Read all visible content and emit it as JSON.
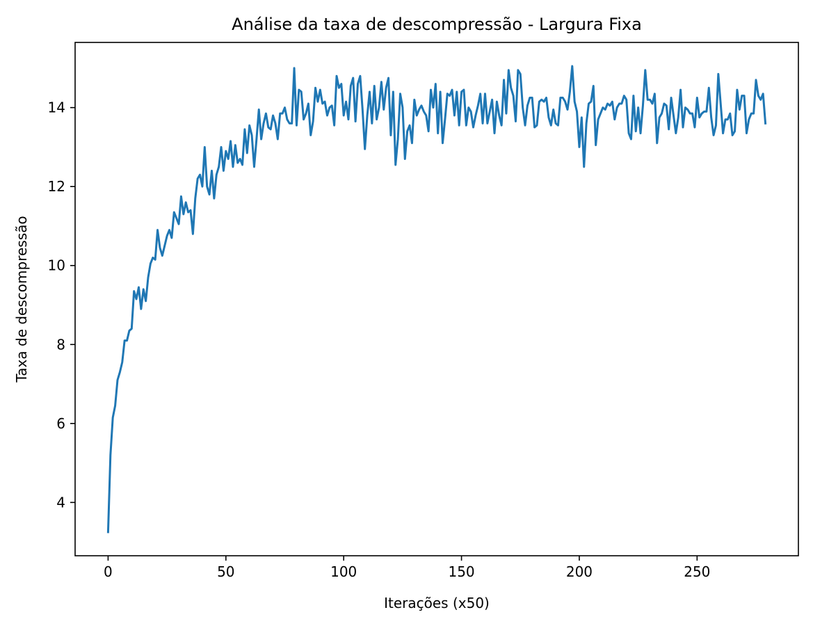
{
  "chart_data": {
    "type": "line",
    "title": "Análise da taxa de descompressão - Largura Fixa",
    "xlabel": "Iterações (x50)",
    "ylabel": "Taxa de descompressão",
    "xlim": [
      -14,
      293
    ],
    "ylim": [
      2.65,
      15.65
    ],
    "xticks": [
      0,
      50,
      100,
      150,
      200,
      250
    ],
    "yticks": [
      4,
      6,
      8,
      10,
      12,
      14
    ],
    "grid": false,
    "legend": "none",
    "series": [
      {
        "color": "#1f77b4",
        "x": [
          0,
          1,
          2,
          3,
          4,
          5,
          6,
          7,
          8,
          9,
          10,
          11,
          12,
          13,
          14,
          15,
          16,
          17,
          18,
          19,
          20,
          21,
          22,
          23,
          24,
          25,
          26,
          27,
          28,
          29,
          30,
          31,
          32,
          33,
          34,
          35,
          36,
          37,
          38,
          39,
          40,
          41,
          42,
          43,
          44,
          45,
          46,
          47,
          48,
          49,
          50,
          51,
          52,
          53,
          54,
          55,
          56,
          57,
          58,
          59,
          60,
          61,
          62,
          63,
          64,
          65,
          66,
          67,
          68,
          69,
          70,
          71,
          72,
          73,
          74,
          75,
          76,
          77,
          78,
          79,
          80,
          81,
          82,
          83,
          84,
          85,
          86,
          87,
          88,
          89,
          90,
          91,
          92,
          93,
          94,
          95,
          96,
          97,
          98,
          99,
          100,
          101,
          102,
          103,
          104,
          105,
          106,
          107,
          108,
          109,
          110,
          111,
          112,
          113,
          114,
          115,
          116,
          117,
          118,
          119,
          120,
          121,
          122,
          123,
          124,
          125,
          126,
          127,
          128,
          129,
          130,
          131,
          132,
          133,
          134,
          135,
          136,
          137,
          138,
          139,
          140,
          141,
          142,
          143,
          144,
          145,
          146,
          147,
          148,
          149,
          150,
          151,
          152,
          153,
          154,
          155,
          156,
          157,
          158,
          159,
          160,
          161,
          162,
          163,
          164,
          165,
          166,
          167,
          168,
          169,
          170,
          171,
          172,
          173,
          174,
          175,
          176,
          177,
          178,
          179,
          180,
          181,
          182,
          183,
          184,
          185,
          186,
          187,
          188,
          189,
          190,
          191,
          192,
          193,
          194,
          195,
          196,
          197,
          198,
          199,
          200,
          201,
          202,
          203,
          204,
          205,
          206,
          207,
          208,
          209,
          210,
          211,
          212,
          213,
          214,
          215,
          216,
          217,
          218,
          219,
          220,
          221,
          222,
          223,
          224,
          225,
          226,
          227,
          228,
          229,
          230,
          231,
          232,
          233,
          234,
          235,
          236,
          237,
          238,
          239,
          240,
          241,
          242,
          243,
          244,
          245,
          246,
          247,
          248,
          249,
          250,
          251,
          252,
          253,
          254,
          255,
          256,
          257,
          258,
          259,
          260,
          261,
          262,
          263,
          264,
          265,
          266,
          267,
          268,
          269,
          270,
          271,
          272,
          273,
          274,
          275,
          276,
          277,
          278,
          279
        ],
        "y": [
          3.25,
          5.2,
          6.15,
          6.45,
          7.1,
          7.3,
          7.55,
          8.1,
          8.1,
          8.35,
          8.4,
          9.35,
          9.15,
          9.45,
          8.9,
          9.4,
          9.1,
          9.7,
          10.05,
          10.2,
          10.15,
          10.9,
          10.45,
          10.25,
          10.5,
          10.75,
          10.9,
          10.7,
          11.35,
          11.2,
          11.05,
          11.75,
          11.3,
          11.6,
          11.35,
          11.4,
          10.8,
          11.7,
          12.2,
          12.3,
          12.0,
          13.0,
          12.0,
          11.8,
          12.4,
          11.7,
          12.3,
          12.5,
          13.0,
          12.4,
          12.9,
          12.7,
          13.15,
          12.5,
          13.05,
          12.6,
          12.7,
          12.55,
          13.45,
          12.85,
          13.55,
          13.3,
          12.5,
          13.2,
          13.95,
          13.2,
          13.6,
          13.85,
          13.5,
          13.45,
          13.8,
          13.6,
          13.2,
          13.85,
          13.85,
          14.0,
          13.7,
          13.6,
          13.6,
          15.0,
          13.55,
          14.45,
          14.4,
          13.7,
          13.85,
          14.1,
          13.3,
          13.65,
          14.5,
          14.15,
          14.45,
          14.1,
          14.15,
          13.8,
          14.0,
          14.05,
          13.55,
          14.8,
          14.5,
          14.6,
          13.8,
          14.15,
          13.7,
          14.55,
          14.75,
          13.65,
          14.6,
          14.8,
          13.95,
          12.95,
          13.8,
          14.4,
          13.6,
          14.55,
          13.7,
          14.0,
          14.65,
          13.95,
          14.5,
          14.75,
          13.3,
          14.4,
          12.55,
          13.2,
          14.35,
          14.0,
          12.7,
          13.4,
          13.55,
          13.1,
          14.2,
          13.8,
          13.95,
          14.05,
          13.9,
          13.8,
          13.4,
          14.45,
          14.0,
          14.6,
          13.35,
          14.4,
          13.1,
          13.7,
          14.35,
          14.3,
          14.45,
          13.8,
          14.4,
          13.55,
          14.4,
          14.45,
          13.55,
          14.0,
          13.9,
          13.5,
          13.8,
          14.05,
          14.35,
          13.6,
          14.35,
          13.6,
          13.9,
          14.2,
          13.35,
          14.15,
          13.8,
          13.55,
          14.7,
          13.85,
          14.95,
          14.5,
          14.3,
          13.65,
          14.95,
          14.85,
          14.0,
          13.55,
          14.05,
          14.25,
          14.25,
          13.5,
          13.55,
          14.15,
          14.2,
          14.15,
          14.25,
          13.75,
          13.55,
          13.95,
          13.6,
          13.55,
          14.25,
          14.25,
          14.15,
          13.95,
          14.4,
          15.05,
          14.15,
          13.9,
          13.0,
          13.75,
          12.5,
          13.6,
          14.1,
          14.15,
          14.55,
          13.05,
          13.7,
          13.85,
          14.0,
          13.95,
          14.1,
          14.05,
          14.15,
          13.7,
          14.0,
          14.1,
          14.1,
          14.3,
          14.2,
          13.35,
          13.2,
          14.3,
          13.4,
          14.0,
          13.35,
          14.05,
          14.95,
          14.2,
          14.2,
          14.1,
          14.35,
          13.1,
          13.75,
          13.85,
          14.1,
          14.05,
          13.45,
          14.25,
          13.8,
          13.35,
          13.75,
          14.45,
          13.5,
          14.0,
          13.95,
          13.85,
          13.85,
          13.5,
          14.25,
          13.75,
          13.85,
          13.9,
          13.9,
          14.5,
          13.75,
          13.3,
          13.55,
          14.85,
          14.1,
          13.35,
          13.7,
          13.7,
          13.85,
          13.3,
          13.4,
          14.45,
          13.95,
          14.3,
          14.3,
          13.35,
          13.7,
          13.85,
          13.85,
          14.7,
          14.3,
          14.2,
          14.35,
          13.6
        ]
      }
    ]
  }
}
